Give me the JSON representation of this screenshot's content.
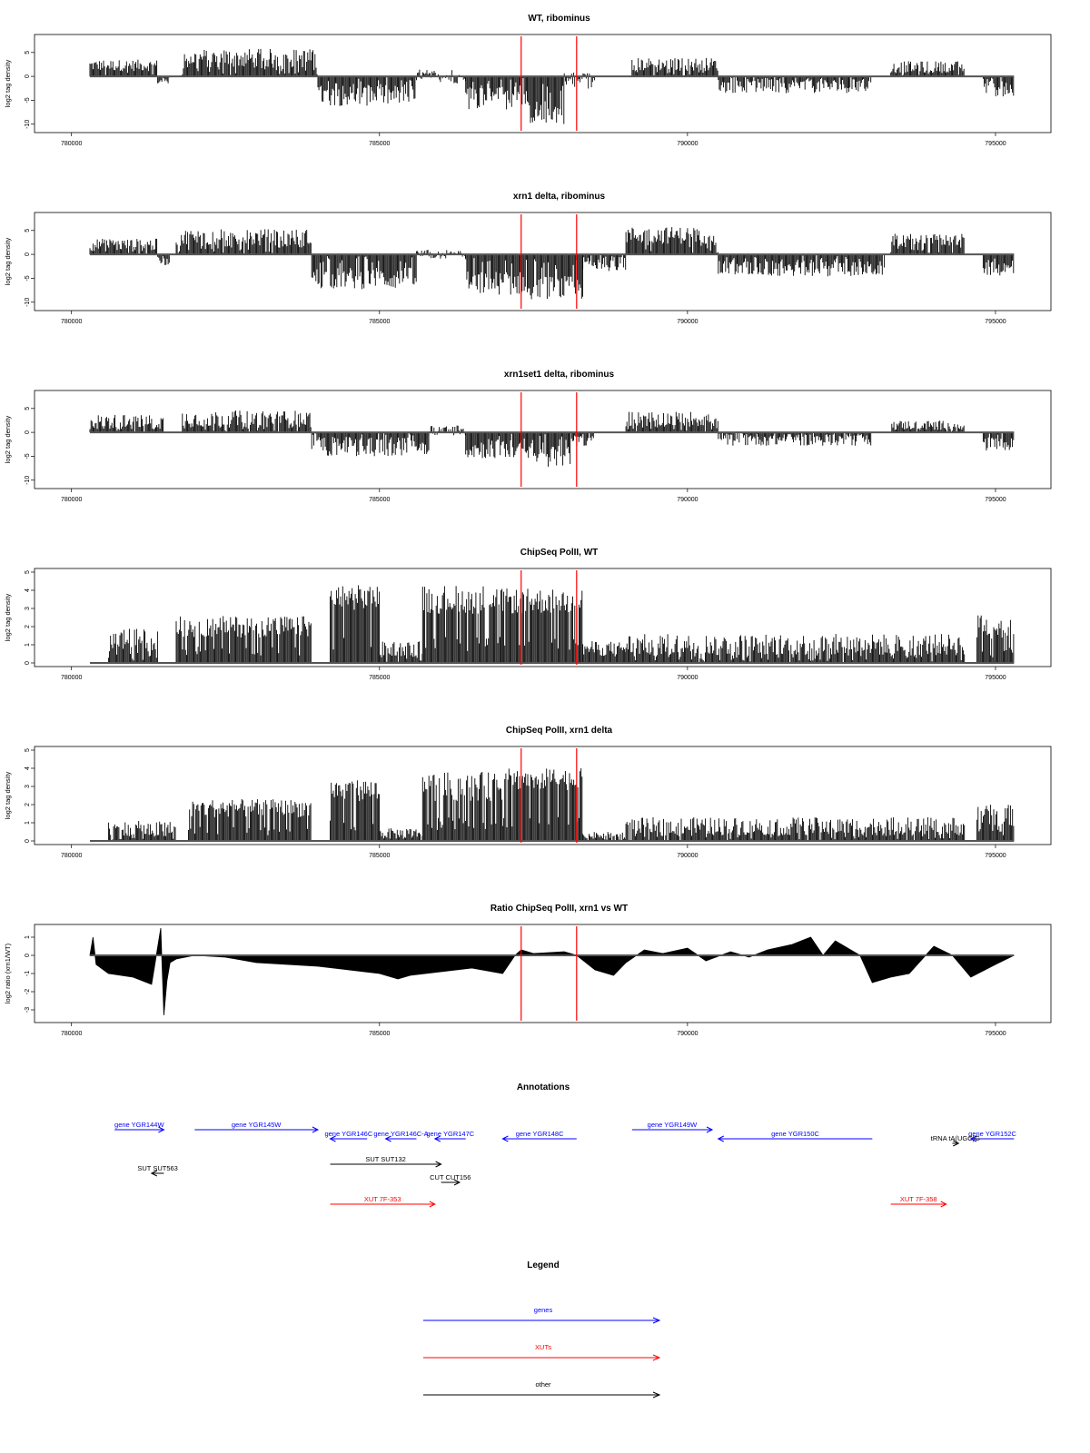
{
  "figure": {
    "annotations_title": "Annotations",
    "legend_title": "Legend"
  },
  "chart_data": [
    {
      "type": "bar",
      "title": "WT, ribominus",
      "ylabel": "log2 tag density",
      "xlim": [
        780300,
        795300
      ],
      "ylim": [
        -11,
        8
      ],
      "xticks": [
        780000,
        785000,
        790000,
        795000
      ],
      "yticks": [
        -10,
        -5,
        0,
        5
      ],
      "ytick_labels": [
        "-10",
        "-5",
        "0",
        "5"
      ],
      "marker_lines": [
        787300,
        788200
      ],
      "marker_color": "#ff0000",
      "segments": [
        {
          "x": [
            780300,
            781400
          ],
          "y": 2.3,
          "noise": 1.2
        },
        {
          "x": [
            781400,
            781600
          ],
          "y": -1.0,
          "noise": 0.6
        },
        {
          "x": [
            781800,
            784000
          ],
          "y": 3.8,
          "noise": 2.0
        },
        {
          "x": [
            784000,
            785600
          ],
          "y": -4.0,
          "noise": 2.2
        },
        {
          "x": [
            785600,
            786400
          ],
          "y": 0.0,
          "noise": 1.5
        },
        {
          "x": [
            786400,
            787400
          ],
          "y": -4.5,
          "noise": 2.5
        },
        {
          "x": [
            787400,
            788000
          ],
          "y": -7.5,
          "noise": 2.5
        },
        {
          "x": [
            788000,
            788500
          ],
          "y": -1.0,
          "noise": 2.0
        },
        {
          "x": [
            789100,
            790500
          ],
          "y": 2.5,
          "noise": 1.4
        },
        {
          "x": [
            790500,
            793000
          ],
          "y": -2.0,
          "noise": 1.5
        },
        {
          "x": [
            793300,
            794500
          ],
          "y": 2.0,
          "noise": 1.2
        },
        {
          "x": [
            794800,
            795300
          ],
          "y": -2.8,
          "noise": 1.5
        }
      ]
    },
    {
      "type": "bar",
      "title": "xrn1 delta, ribominus",
      "ylabel": "log2 tag density",
      "xlim": [
        780300,
        795300
      ],
      "ylim": [
        -11,
        8
      ],
      "xticks": [
        780000,
        785000,
        790000,
        795000
      ],
      "yticks": [
        -10,
        -5,
        0,
        5
      ],
      "ytick_labels": [
        "-10",
        "-5",
        "0",
        "5"
      ],
      "marker_lines": [
        787300,
        788200
      ],
      "marker_color": "#ff0000",
      "segments": [
        {
          "x": [
            780300,
            781400
          ],
          "y": 2.0,
          "noise": 1.3
        },
        {
          "x": [
            781400,
            781600
          ],
          "y": -1.5,
          "noise": 0.8
        },
        {
          "x": [
            781700,
            783900
          ],
          "y": 3.5,
          "noise": 1.8
        },
        {
          "x": [
            783900,
            785600
          ],
          "y": -5.0,
          "noise": 2.3
        },
        {
          "x": [
            785600,
            786400
          ],
          "y": 0.0,
          "noise": 1.0
        },
        {
          "x": [
            786400,
            787400
          ],
          "y": -6.0,
          "noise": 2.5
        },
        {
          "x": [
            787400,
            788300
          ],
          "y": -7.0,
          "noise": 2.5
        },
        {
          "x": [
            788300,
            789000
          ],
          "y": -2.0,
          "noise": 1.5
        },
        {
          "x": [
            789000,
            790500
          ],
          "y": 4.0,
          "noise": 1.8
        },
        {
          "x": [
            790500,
            793200
          ],
          "y": -3.0,
          "noise": 1.6
        },
        {
          "x": [
            793300,
            794500
          ],
          "y": 3.0,
          "noise": 1.3
        },
        {
          "x": [
            794800,
            795300
          ],
          "y": -3.0,
          "noise": 1.5
        }
      ]
    },
    {
      "type": "bar",
      "title": "xrn1set1 delta, ribominus",
      "ylabel": "log2 tag density",
      "xlim": [
        780300,
        795300
      ],
      "ylim": [
        -11,
        8
      ],
      "xticks": [
        780000,
        785000,
        790000,
        795000
      ],
      "yticks": [
        -10,
        -5,
        0,
        5
      ],
      "ytick_labels": [
        "-10",
        "-5",
        "0",
        "5"
      ],
      "marker_lines": [
        787300,
        788200
      ],
      "marker_color": "#ff0000",
      "segments": [
        {
          "x": [
            780300,
            781500
          ],
          "y": 2.2,
          "noise": 1.6
        },
        {
          "x": [
            781800,
            783900
          ],
          "y": 2.8,
          "noise": 1.8
        },
        {
          "x": [
            783900,
            785800
          ],
          "y": -3.0,
          "noise": 2.0
        },
        {
          "x": [
            785800,
            786400
          ],
          "y": 0.5,
          "noise": 1.2
        },
        {
          "x": [
            786400,
            787400
          ],
          "y": -3.5,
          "noise": 2.0
        },
        {
          "x": [
            787400,
            788100
          ],
          "y": -5.0,
          "noise": 2.2
        },
        {
          "x": [
            788100,
            788500
          ],
          "y": -1.5,
          "noise": 1.5
        },
        {
          "x": [
            789000,
            790500
          ],
          "y": 2.8,
          "noise": 1.6
        },
        {
          "x": [
            790500,
            793000
          ],
          "y": -1.5,
          "noise": 1.3
        },
        {
          "x": [
            793300,
            794500
          ],
          "y": 1.5,
          "noise": 1.0
        },
        {
          "x": [
            794800,
            795300
          ],
          "y": -2.5,
          "noise": 1.3
        }
      ]
    },
    {
      "type": "bar",
      "title": "ChipSeq PolII, WT",
      "ylabel": "log2 tag density",
      "xlim": [
        780300,
        795300
      ],
      "ylim": [
        0,
        5
      ],
      "xticks": [
        780000,
        785000,
        790000,
        795000
      ],
      "yticks": [
        0,
        1,
        2,
        3,
        4,
        5
      ],
      "ytick_labels": [
        "0",
        "1",
        "2",
        "3",
        "4",
        "5"
      ],
      "marker_lines": [
        787300,
        788200
      ],
      "marker_color": "#ff0000",
      "segments": [
        {
          "x": [
            780600,
            781400
          ],
          "y": 1.3,
          "noise": 0.6
        },
        {
          "x": [
            781700,
            783900
          ],
          "y": 2.0,
          "noise": 0.6
        },
        {
          "x": [
            784200,
            785000
          ],
          "y": 3.6,
          "noise": 0.7
        },
        {
          "x": [
            785000,
            785700
          ],
          "y": 0.8,
          "noise": 0.4
        },
        {
          "x": [
            785700,
            787000
          ],
          "y": 3.5,
          "noise": 0.8
        },
        {
          "x": [
            787000,
            788300
          ],
          "y": 3.4,
          "noise": 0.7
        },
        {
          "x": [
            788300,
            789000
          ],
          "y": 0.8,
          "noise": 0.4
        },
        {
          "x": [
            789000,
            794500
          ],
          "y": 1.0,
          "noise": 0.6
        },
        {
          "x": [
            794700,
            795300
          ],
          "y": 2.0,
          "noise": 0.7
        }
      ]
    },
    {
      "type": "bar",
      "title": "ChipSeq PolII, xrn1 delta",
      "ylabel": "log2 tag density",
      "xlim": [
        780300,
        795300
      ],
      "ylim": [
        0,
        5
      ],
      "xticks": [
        780000,
        785000,
        790000,
        795000
      ],
      "yticks": [
        0,
        1,
        2,
        3,
        4,
        5
      ],
      "ytick_labels": [
        "0",
        "1",
        "2",
        "3",
        "4",
        "5"
      ],
      "marker_lines": [
        787300,
        788200
      ],
      "marker_color": "#ff0000",
      "segments": [
        {
          "x": [
            780600,
            781700
          ],
          "y": 0.6,
          "noise": 0.5
        },
        {
          "x": [
            781900,
            783900
          ],
          "y": 1.8,
          "noise": 0.5
        },
        {
          "x": [
            784200,
            785000
          ],
          "y": 2.8,
          "noise": 0.6
        },
        {
          "x": [
            785000,
            785700
          ],
          "y": 0.4,
          "noise": 0.3
        },
        {
          "x": [
            785700,
            787000
          ],
          "y": 3.0,
          "noise": 0.8
        },
        {
          "x": [
            787000,
            788300
          ],
          "y": 3.4,
          "noise": 0.6
        },
        {
          "x": [
            788300,
            789000
          ],
          "y": 0.3,
          "noise": 0.2
        },
        {
          "x": [
            789000,
            794500
          ],
          "y": 0.8,
          "noise": 0.5
        },
        {
          "x": [
            794700,
            795300
          ],
          "y": 1.4,
          "noise": 0.6
        }
      ]
    },
    {
      "type": "area",
      "title": "Ratio ChipSeq PolII, xrn1 vs WT",
      "ylabel": "log2 ratio (xrn1/WT)",
      "xlim": [
        780300,
        795300
      ],
      "ylim": [
        -3.5,
        1.5
      ],
      "xticks": [
        780000,
        785000,
        790000,
        795000
      ],
      "yticks": [
        -3,
        -2,
        -1,
        0,
        1
      ],
      "ytick_labels": [
        "-3",
        "-2",
        "-1",
        "0",
        "1"
      ],
      "marker_lines": [
        787300,
        788200
      ],
      "marker_color": "#ff0000",
      "x": [
        780300,
        780350,
        780400,
        780600,
        781000,
        781300,
        781450,
        781500,
        781550,
        781600,
        781700,
        782000,
        782500,
        783000,
        783500,
        784000,
        784500,
        785000,
        785300,
        785500,
        786000,
        786500,
        787000,
        787200,
        787300,
        787500,
        788000,
        788200,
        788500,
        788800,
        789000,
        789300,
        789600,
        790000,
        790300,
        790700,
        791000,
        791300,
        791700,
        792000,
        792200,
        792400,
        792800,
        793000,
        793300,
        793600,
        794000,
        794300,
        794600,
        795000,
        795300
      ],
      "values": [
        0.0,
        1.0,
        -0.5,
        -1.0,
        -1.2,
        -1.6,
        1.5,
        -3.3,
        -1.4,
        -0.4,
        -0.2,
        0.0,
        -0.1,
        -0.4,
        -0.5,
        -0.6,
        -0.8,
        -1.0,
        -1.3,
        -1.1,
        -0.9,
        -0.7,
        -1.0,
        0.0,
        0.3,
        0.1,
        0.2,
        0.0,
        -0.8,
        -1.1,
        -0.4,
        0.3,
        0.1,
        0.4,
        -0.3,
        0.2,
        -0.1,
        0.3,
        0.6,
        1.0,
        0.0,
        0.8,
        0.0,
        -1.5,
        -1.2,
        -1.0,
        0.5,
        0.0,
        -1.2,
        -0.5,
        0.0
      ]
    }
  ],
  "annotations": [
    {
      "label": "gene YGR144W",
      "from": 780700,
      "to": 781500,
      "row": 0,
      "color": "#0000ff"
    },
    {
      "label": "gene YGR145W",
      "from": 782000,
      "to": 784000,
      "row": 0,
      "color": "#0000ff"
    },
    {
      "label": "gene YGR146C",
      "from": 784800,
      "to": 784200,
      "row": 1,
      "color": "#0000ff"
    },
    {
      "label": "gene YGR146C-A",
      "from": 785600,
      "to": 785100,
      "row": 1,
      "color": "#0000ff"
    },
    {
      "label": "gene YGR147C",
      "from": 786400,
      "to": 785900,
      "row": 1,
      "color": "#0000ff"
    },
    {
      "label": "gene YGR148C",
      "from": 788200,
      "to": 787000,
      "row": 1,
      "color": "#0000ff"
    },
    {
      "label": "gene YGR149W",
      "from": 789100,
      "to": 790400,
      "row": 0,
      "color": "#0000ff"
    },
    {
      "label": "gene YGR150C",
      "from": 793000,
      "to": 790500,
      "row": 1,
      "color": "#0000ff"
    },
    {
      "label": "gene YGR152C",
      "from": 795300,
      "to": 794600,
      "row": 1,
      "color": "#0000ff"
    },
    {
      "label": "tRNA tA(UGC)G",
      "from": 794300,
      "to": 794400,
      "row": 2,
      "color": "#000000"
    },
    {
      "label": "SUT SUT563",
      "from": 781500,
      "to": 781300,
      "row": 3,
      "color": "#000000"
    },
    {
      "label": "SUT SUT132",
      "from": 784200,
      "to": 786000,
      "row": 4,
      "color": "#000000"
    },
    {
      "label": "CUT CUT156",
      "from": 786000,
      "to": 786300,
      "row": 5,
      "color": "#000000"
    },
    {
      "label": "XUT 7F-353",
      "from": 784200,
      "to": 785900,
      "row": 6,
      "color": "#ff0000"
    },
    {
      "label": "XUT 7F-358",
      "from": 793300,
      "to": 794200,
      "row": 6,
      "color": "#ff0000"
    }
  ],
  "legend": [
    {
      "label": "genes",
      "color": "#0000ff"
    },
    {
      "label": "XUTs",
      "color": "#ff0000"
    },
    {
      "label": "other",
      "color": "#000000"
    }
  ]
}
